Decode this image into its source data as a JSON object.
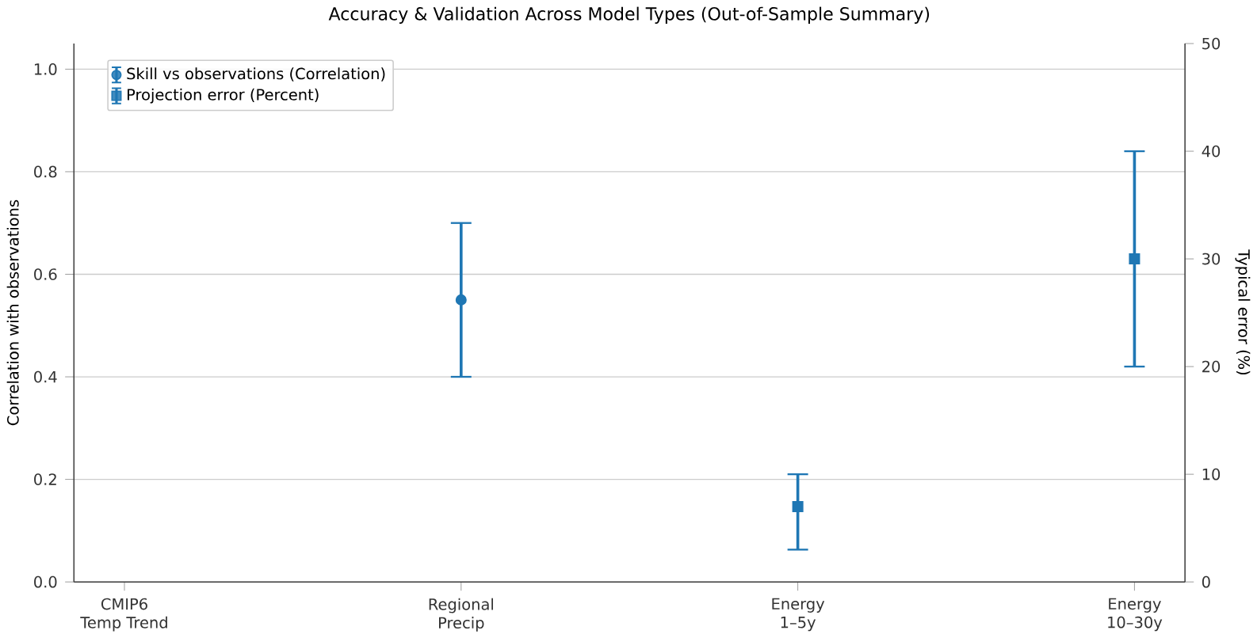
{
  "chart_data": {
    "type": "scatter",
    "title": "Accuracy & Validation Across Model Types (Out-of-Sample Summary)",
    "ylabel": "Correlation with observations",
    "y2label": "Typical error (%)",
    "categories": [
      "CMIP6\nTemp Trend",
      "Regional\nPrecip",
      "Energy\n1–5y",
      "Energy\n10–30y"
    ],
    "ylim": [
      0,
      1.05
    ],
    "yticks": [
      {
        "value": 0,
        "label": "0.0"
      },
      0.2,
      0.4,
      0.6,
      0.8,
      {
        "value": 1,
        "label": "1.0"
      }
    ],
    "y2lim": [
      0,
      50
    ],
    "y2ticks": [
      0,
      10,
      20,
      30,
      40,
      50
    ],
    "grid": "y",
    "legend": "top left",
    "series": [
      {
        "name": "Skill vs observations (Correlation)",
        "color": "#1f77b4",
        "marker": "circle",
        "values": [
          null,
          0.55,
          null,
          null
        ],
        "errors": [
          null,
          [
            0.4,
            0.7
          ],
          null,
          null
        ]
      },
      {
        "name": "Projection error (Percent)",
        "color": "#1f77b4",
        "marker": "square",
        "axis": "y2",
        "values": [
          null,
          null,
          7,
          30
        ],
        "errors": [
          null,
          null,
          [
            3,
            10
          ],
          [
            20,
            40
          ]
        ]
      }
    ]
  }
}
